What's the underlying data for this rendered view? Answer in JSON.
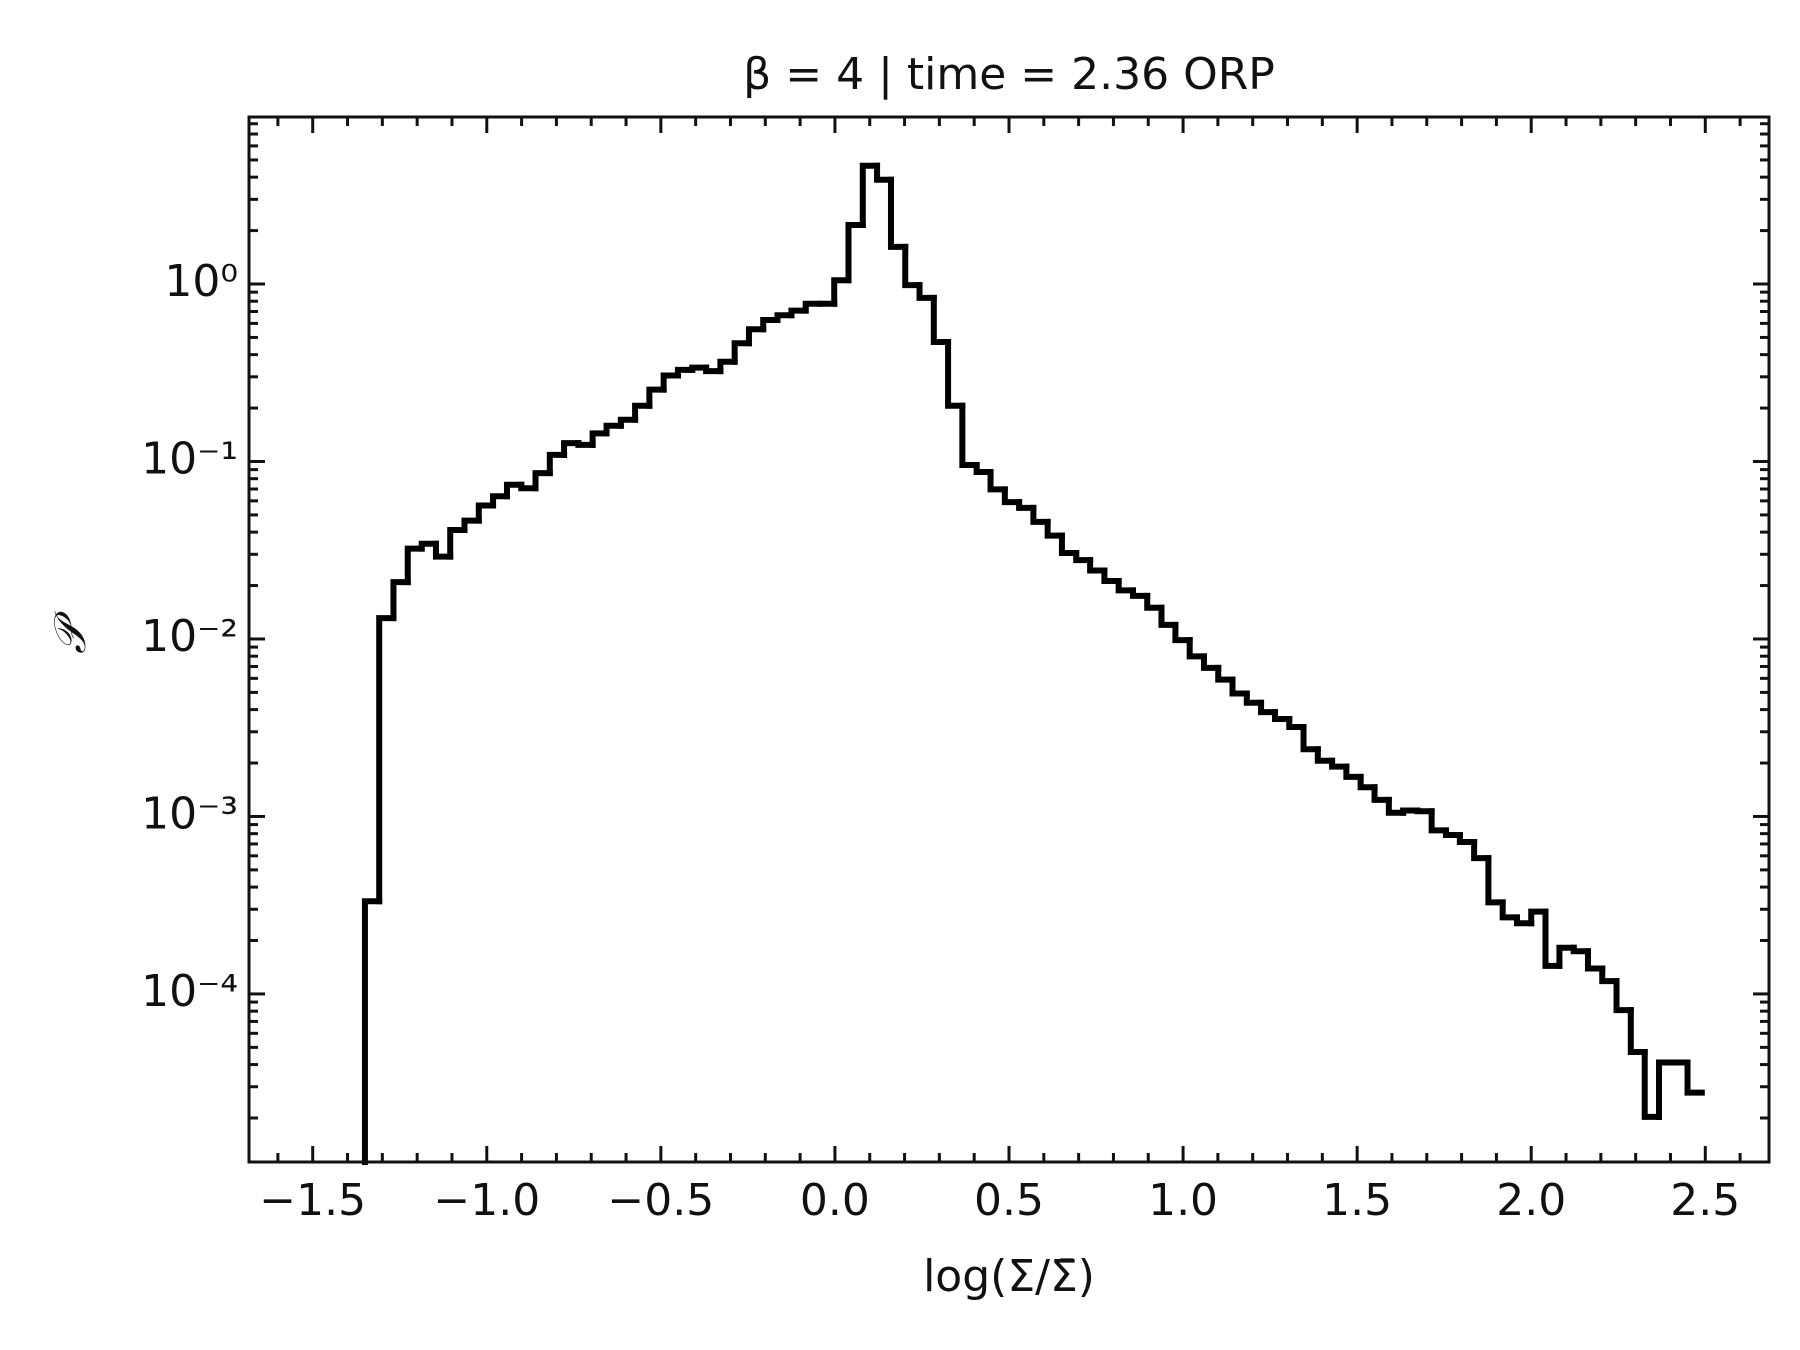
{
  "chart_data": {
    "type": "histogram",
    "title": "β = 4 | time = 2.36 ORP",
    "x_label": "log(Σ/Σ̄)",
    "y_label": "𝒫",
    "color": "#000000",
    "y_scale": "log",
    "bins": [
      -1.35,
      -1.309,
      -1.268,
      -1.227,
      -1.187,
      -1.146,
      -1.105,
      -1.064,
      -1.023,
      -0.982,
      -0.942,
      -0.901,
      -0.86,
      -0.819,
      -0.778,
      -0.737,
      -0.696,
      -0.656,
      -0.615,
      -0.574,
      -0.533,
      -0.492,
      -0.451,
      -0.41,
      -0.37,
      -0.329,
      -0.288,
      -0.247,
      -0.206,
      -0.165,
      -0.125,
      -0.084,
      -0.043,
      -0.002,
      0.039,
      0.08,
      0.121,
      0.161,
      0.202,
      0.243,
      0.284,
      0.325,
      0.366,
      0.407,
      0.447,
      0.488,
      0.529,
      0.57,
      0.611,
      0.652,
      0.693,
      0.733,
      0.774,
      0.815,
      0.856,
      0.897,
      0.938,
      0.978,
      1.019,
      1.06,
      1.101,
      1.142,
      1.183,
      1.224,
      1.264,
      1.305,
      1.346,
      1.387,
      1.428,
      1.469,
      1.51,
      1.55,
      1.591,
      1.632,
      1.673,
      1.714,
      1.755,
      1.795,
      1.836,
      1.877,
      1.918,
      1.959,
      2.0,
      2.041,
      2.081,
      2.122,
      2.163,
      2.204,
      2.245,
      2.286,
      2.326,
      2.367,
      2.408,
      2.449,
      2.49
    ],
    "counts": [
      0.000333,
      0.0131,
      0.0209,
      0.0323,
      0.0344,
      0.0291,
      0.0411,
      0.0464,
      0.0565,
      0.0637,
      0.074,
      0.0707,
      0.086,
      0.109,
      0.127,
      0.124,
      0.144,
      0.159,
      0.172,
      0.206,
      0.254,
      0.305,
      0.328,
      0.338,
      0.323,
      0.365,
      0.464,
      0.556,
      0.627,
      0.667,
      0.708,
      0.774,
      0.774,
      1.05,
      2.15,
      4.64,
      3.87,
      1.62,
      0.985,
      0.835,
      0.471,
      0.206,
      0.0956,
      0.0873,
      0.0697,
      0.059,
      0.0548,
      0.0457,
      0.0382,
      0.0305,
      0.0278,
      0.0243,
      0.0212,
      0.0188,
      0.0175,
      0.015,
      0.012,
      0.00985,
      0.00798,
      0.00687,
      0.0059,
      0.00493,
      0.00437,
      0.00387,
      0.00354,
      0.00319,
      0.00239,
      0.00206,
      0.00191,
      0.00167,
      0.00146,
      0.00124,
      0.00105,
      0.00108,
      0.00107,
      0.000835,
      0.000786,
      0.000718,
      0.000582,
      0.000328,
      0.00027,
      0.00025,
      0.000291,
      0.000144,
      0.000182,
      0.000174,
      0.000139,
      0.000118,
      8.1e-05,
      4.71e-05,
      2.03e-05,
      4.11e-05,
      4.11e-05,
      2.78e-05
    ],
    "xlim": [
      -1.683,
      2.683
    ],
    "ylim": [
      1.13e-05,
      8.73
    ],
    "xticks": [
      {
        "value": -1.5,
        "label": "−1.5"
      },
      {
        "value": -1.0,
        "label": "−1.0"
      },
      {
        "value": -0.5,
        "label": "−0.5"
      },
      {
        "value": 0,
        "label": "0.0"
      },
      0.5,
      {
        "value": 1,
        "label": "1.0"
      },
      1.5,
      {
        "value": 2,
        "label": "2.0"
      },
      2.5
    ],
    "yticks": [
      {
        "value": 0.0001,
        "label": "10⁻⁴"
      },
      {
        "value": 0.001,
        "label": "10⁻³"
      },
      {
        "value": 0.01,
        "label": "10⁻²"
      },
      {
        "value": 0.1,
        "label": "10⁻¹"
      },
      {
        "value": 1,
        "label": "10⁰"
      }
    ]
  }
}
